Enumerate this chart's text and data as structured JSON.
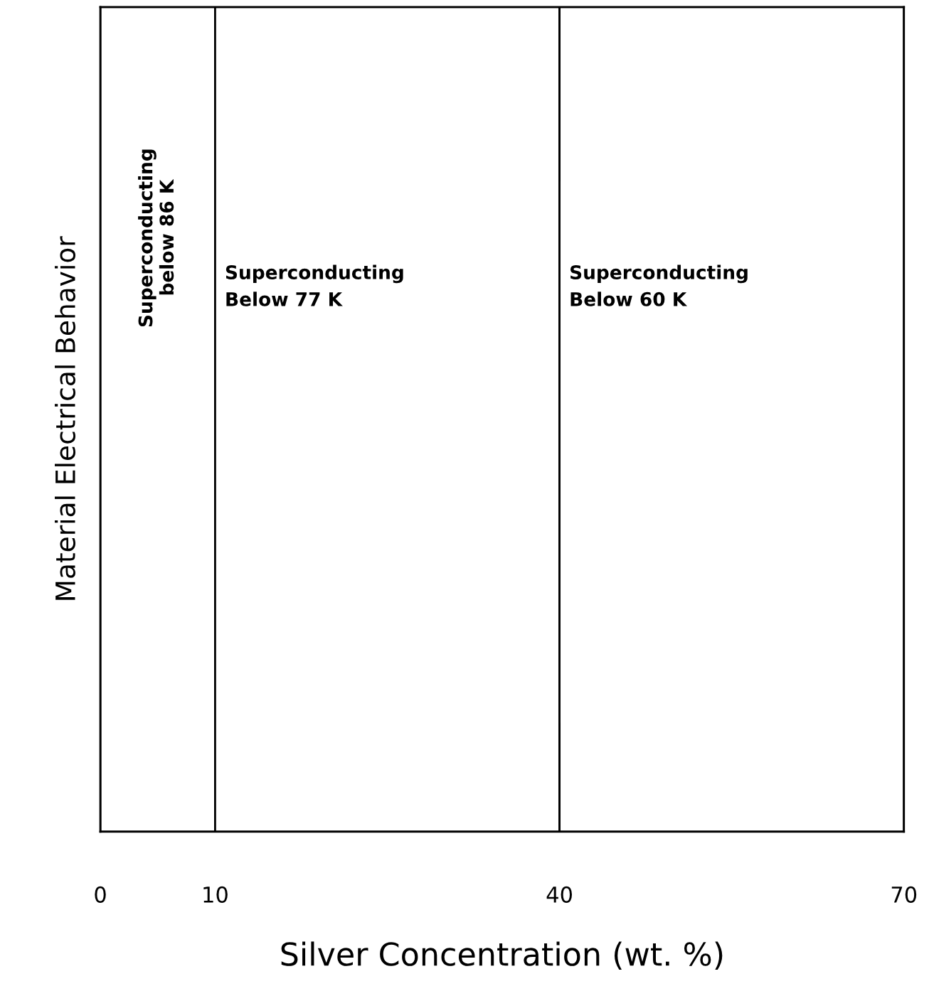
{
  "chart_data": {
    "type": "bar",
    "orientation": "horizontal",
    "stacked": true,
    "xlabel": "Silver Concentration (wt. %)",
    "ylabel": "Material Electrical Behavior",
    "xlim": [
      0,
      70
    ],
    "xticks": [
      0,
      10,
      40,
      70
    ],
    "tick_labels": "x",
    "categories": [
      null
    ],
    "series": [
      {
        "name": "Superconducting\nbelow 86 K",
        "color": "#ffffff",
        "values": [
          10
        ]
      },
      {
        "name": "Superconducting\nBelow 77 K",
        "color": "#ffffff",
        "values": [
          30
        ]
      },
      {
        "name": "Superconducting\nBelow 60 K",
        "color": "#ffffff",
        "values": [
          30
        ]
      }
    ]
  }
}
